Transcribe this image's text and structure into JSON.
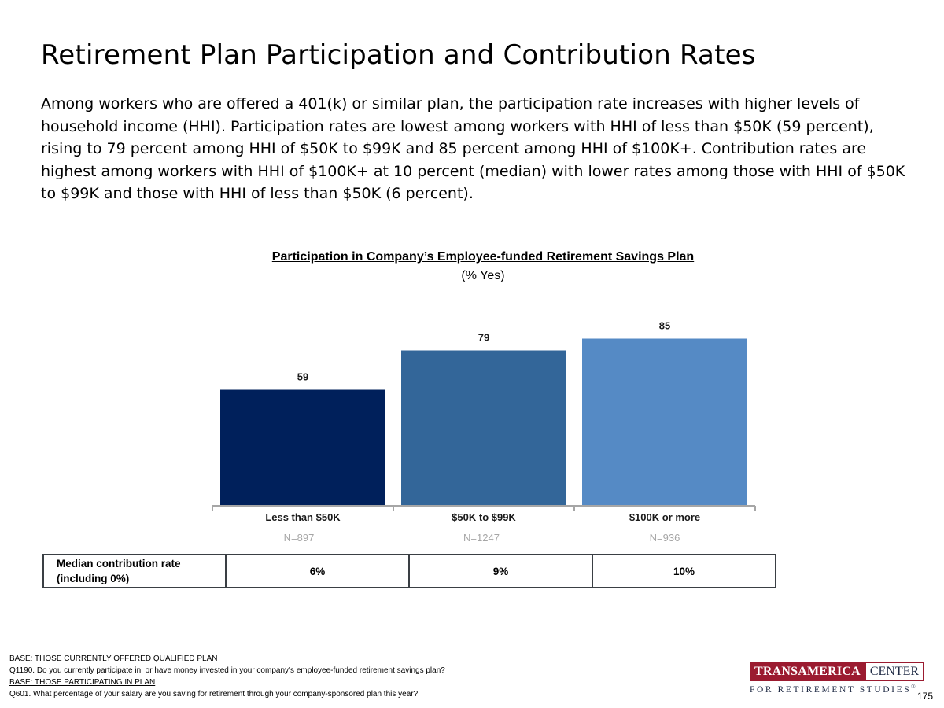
{
  "page": {
    "title": "Retirement Plan Participation and Contribution Rates",
    "intro": "Among workers who are offered a 401(k) or similar plan, the participation rate increases with higher levels of household income (HHI). Participation rates are lowest among workers with HHI of less than $50K (59 percent), rising to 79 percent among HHI of $50K to $99K and 85 percent among HHI of $100K+. Contribution rates are highest among workers with HHI of $100K+ at 10 percent (median) with lower rates among those with HHI of $50K to $99K and those with HHI of less than $50K (6 percent).",
    "page_number": "175"
  },
  "chart_data": {
    "type": "bar",
    "title": "Participation in Company’s Employee-funded Retirement Savings Plan",
    "subtitle": "(% Yes)",
    "categories": [
      "Less than $50K",
      "$50K to $99K",
      "$100K or more"
    ],
    "values": [
      59,
      79,
      85
    ],
    "sample_sizes": [
      "N=897",
      "N=1247",
      "N=936"
    ],
    "colors": [
      "#00205b",
      "#336699",
      "#558ac5"
    ],
    "ylim": [
      0,
      100
    ],
    "xlabel": "",
    "ylabel": "",
    "grid": false,
    "legend": "none"
  },
  "contribution_table": {
    "label": "Median contribution rate (including 0%)",
    "values": [
      "6%",
      "9%",
      "10%"
    ]
  },
  "footnotes": {
    "base1": "BASE: THOSE CURRENTLY OFFERED QUALIFIED PLAN",
    "q1": "Q1190. Do you currently participate in, or have money invested in your company’s employee-funded retirement savings plan?",
    "base2": "BASE: THOSE PARTICIPATING IN PLAN",
    "q2": "Q601. What percentage of your salary are you saving for retirement through your company-sponsored plan this year?"
  },
  "logo": {
    "brand": "TRANSAMERICA",
    "center": "CENTER",
    "subtitle": "FOR RETIREMENT STUDIES",
    "mark": "®"
  }
}
